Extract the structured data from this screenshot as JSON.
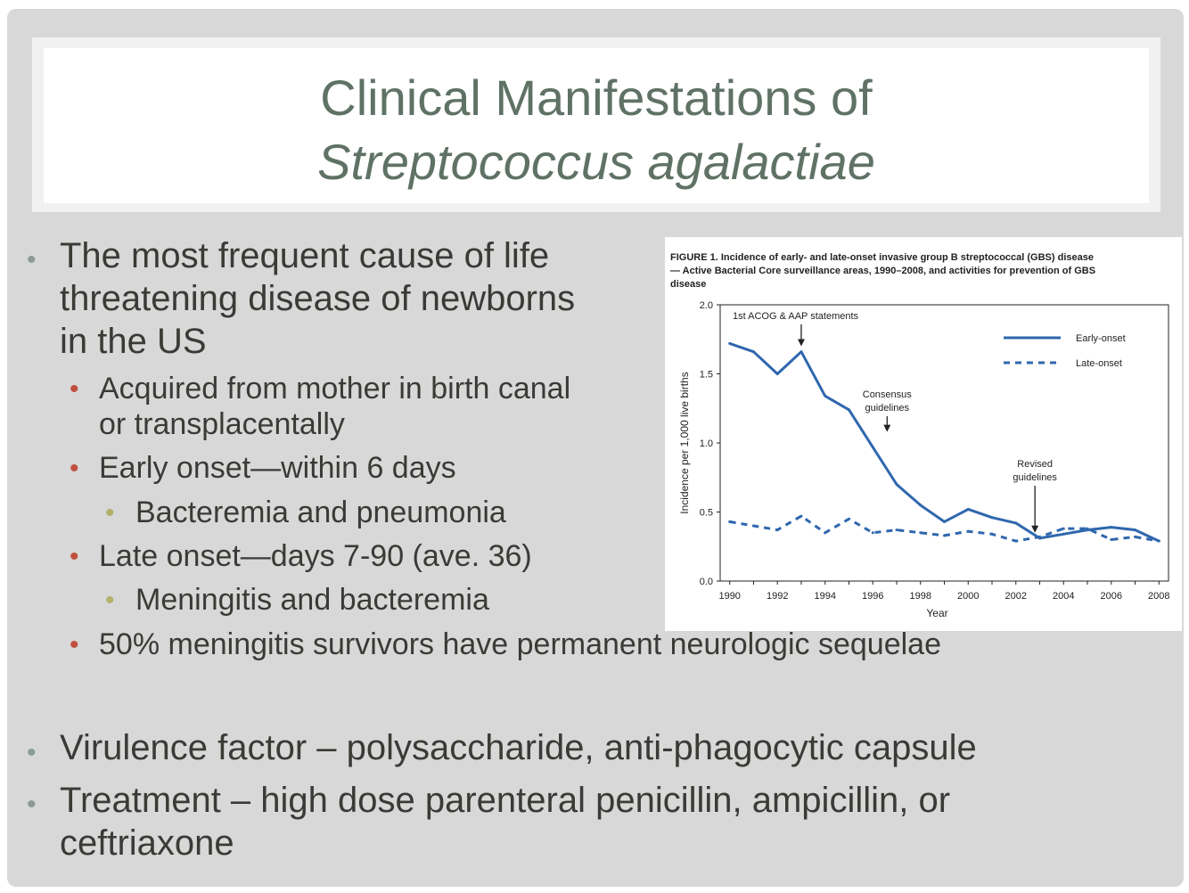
{
  "title": {
    "line1": "Clinical Manifestations of",
    "line2": "Streptococcus agalactiae"
  },
  "bullets": [
    {
      "lines": [
        "The most frequent cause of life",
        "threatening disease of newborns",
        "in the US"
      ]
    },
    {
      "lines": [
        "Acquired from mother in birth canal",
        "or transplacentally"
      ]
    },
    {
      "text": "Early onset—within 6 days"
    },
    {
      "text": "Bacteremia and pneumonia"
    },
    {
      "text": "Late onset—days 7-90 (ave. 36)"
    },
    {
      "text": "Meningitis and bacteremia"
    },
    {
      "text": "50% meningitis survivors have permanent neurologic sequelae"
    },
    {
      "text": "Virulence factor – polysaccharide, anti-phagocytic capsule"
    },
    {
      "lines": [
        "Treatment – high dose parenteral penicillin, ampicillin, or",
        "ceftriaxone"
      ]
    }
  ],
  "colors": {
    "title": "#5f7265",
    "body_text": "#3a3a36",
    "bullet_level1": "#8b9a93",
    "bullet_level2": "#c0503d",
    "bullet_level3": "#b3b06a",
    "series": "#2f67ae"
  },
  "chart_data": {
    "type": "line",
    "title": "FIGURE 1. Incidence of early- and late-onset invasive group B streptococcal (GBS) disease — Active Bacterial Core surveillance areas, 1990–2008, and activities for prevention of GBS disease",
    "title_lines": [
      "FIGURE 1. Incidence of early- and late-onset invasive group B streptococcal (GBS) disease",
      "— Active Bacterial Core surveillance areas, 1990–2008, and activities for prevention of GBS",
      "disease"
    ],
    "xlabel": "Year",
    "ylabel": "Incidence per 1,000 live births",
    "xlim": [
      1989.6,
      2008.4
    ],
    "ylim": [
      0,
      2.0
    ],
    "x_ticks": [
      1990,
      1992,
      1994,
      1996,
      1998,
      2000,
      2002,
      2004,
      2006,
      2008
    ],
    "y_ticks": [
      "0.0",
      "0.5",
      "1.0",
      "1.5",
      "2.0"
    ],
    "legend_position": "top-right",
    "grid": false,
    "x": [
      1990,
      1991,
      1992,
      1993,
      1994,
      1995,
      1996,
      1997,
      1998,
      1999,
      2000,
      2001,
      2002,
      2003,
      2004,
      2005,
      2006,
      2007,
      2008
    ],
    "series": [
      {
        "name": "Early-onset",
        "style": "solid",
        "values": [
          1.72,
          1.66,
          1.5,
          1.66,
          1.34,
          1.24,
          0.97,
          0.7,
          0.55,
          0.43,
          0.52,
          0.46,
          0.42,
          0.31,
          0.34,
          0.37,
          0.39,
          0.37,
          0.29
        ]
      },
      {
        "name": "Late-onset",
        "style": "dashed",
        "values": [
          0.43,
          0.4,
          0.37,
          0.47,
          0.35,
          0.45,
          0.35,
          0.37,
          0.35,
          0.33,
          0.36,
          0.34,
          0.29,
          0.32,
          0.38,
          0.38,
          0.3,
          0.32,
          0.29
        ]
      }
    ],
    "annotations": [
      {
        "lines": [
          "1st ACOG & AAP statements"
        ],
        "x": 1993
      },
      {
        "lines": [
          "Consensus",
          "guidelines"
        ],
        "x": 1996.6
      },
      {
        "lines": [
          "Revised",
          "guidelines"
        ],
        "x": 2002.8
      }
    ]
  }
}
